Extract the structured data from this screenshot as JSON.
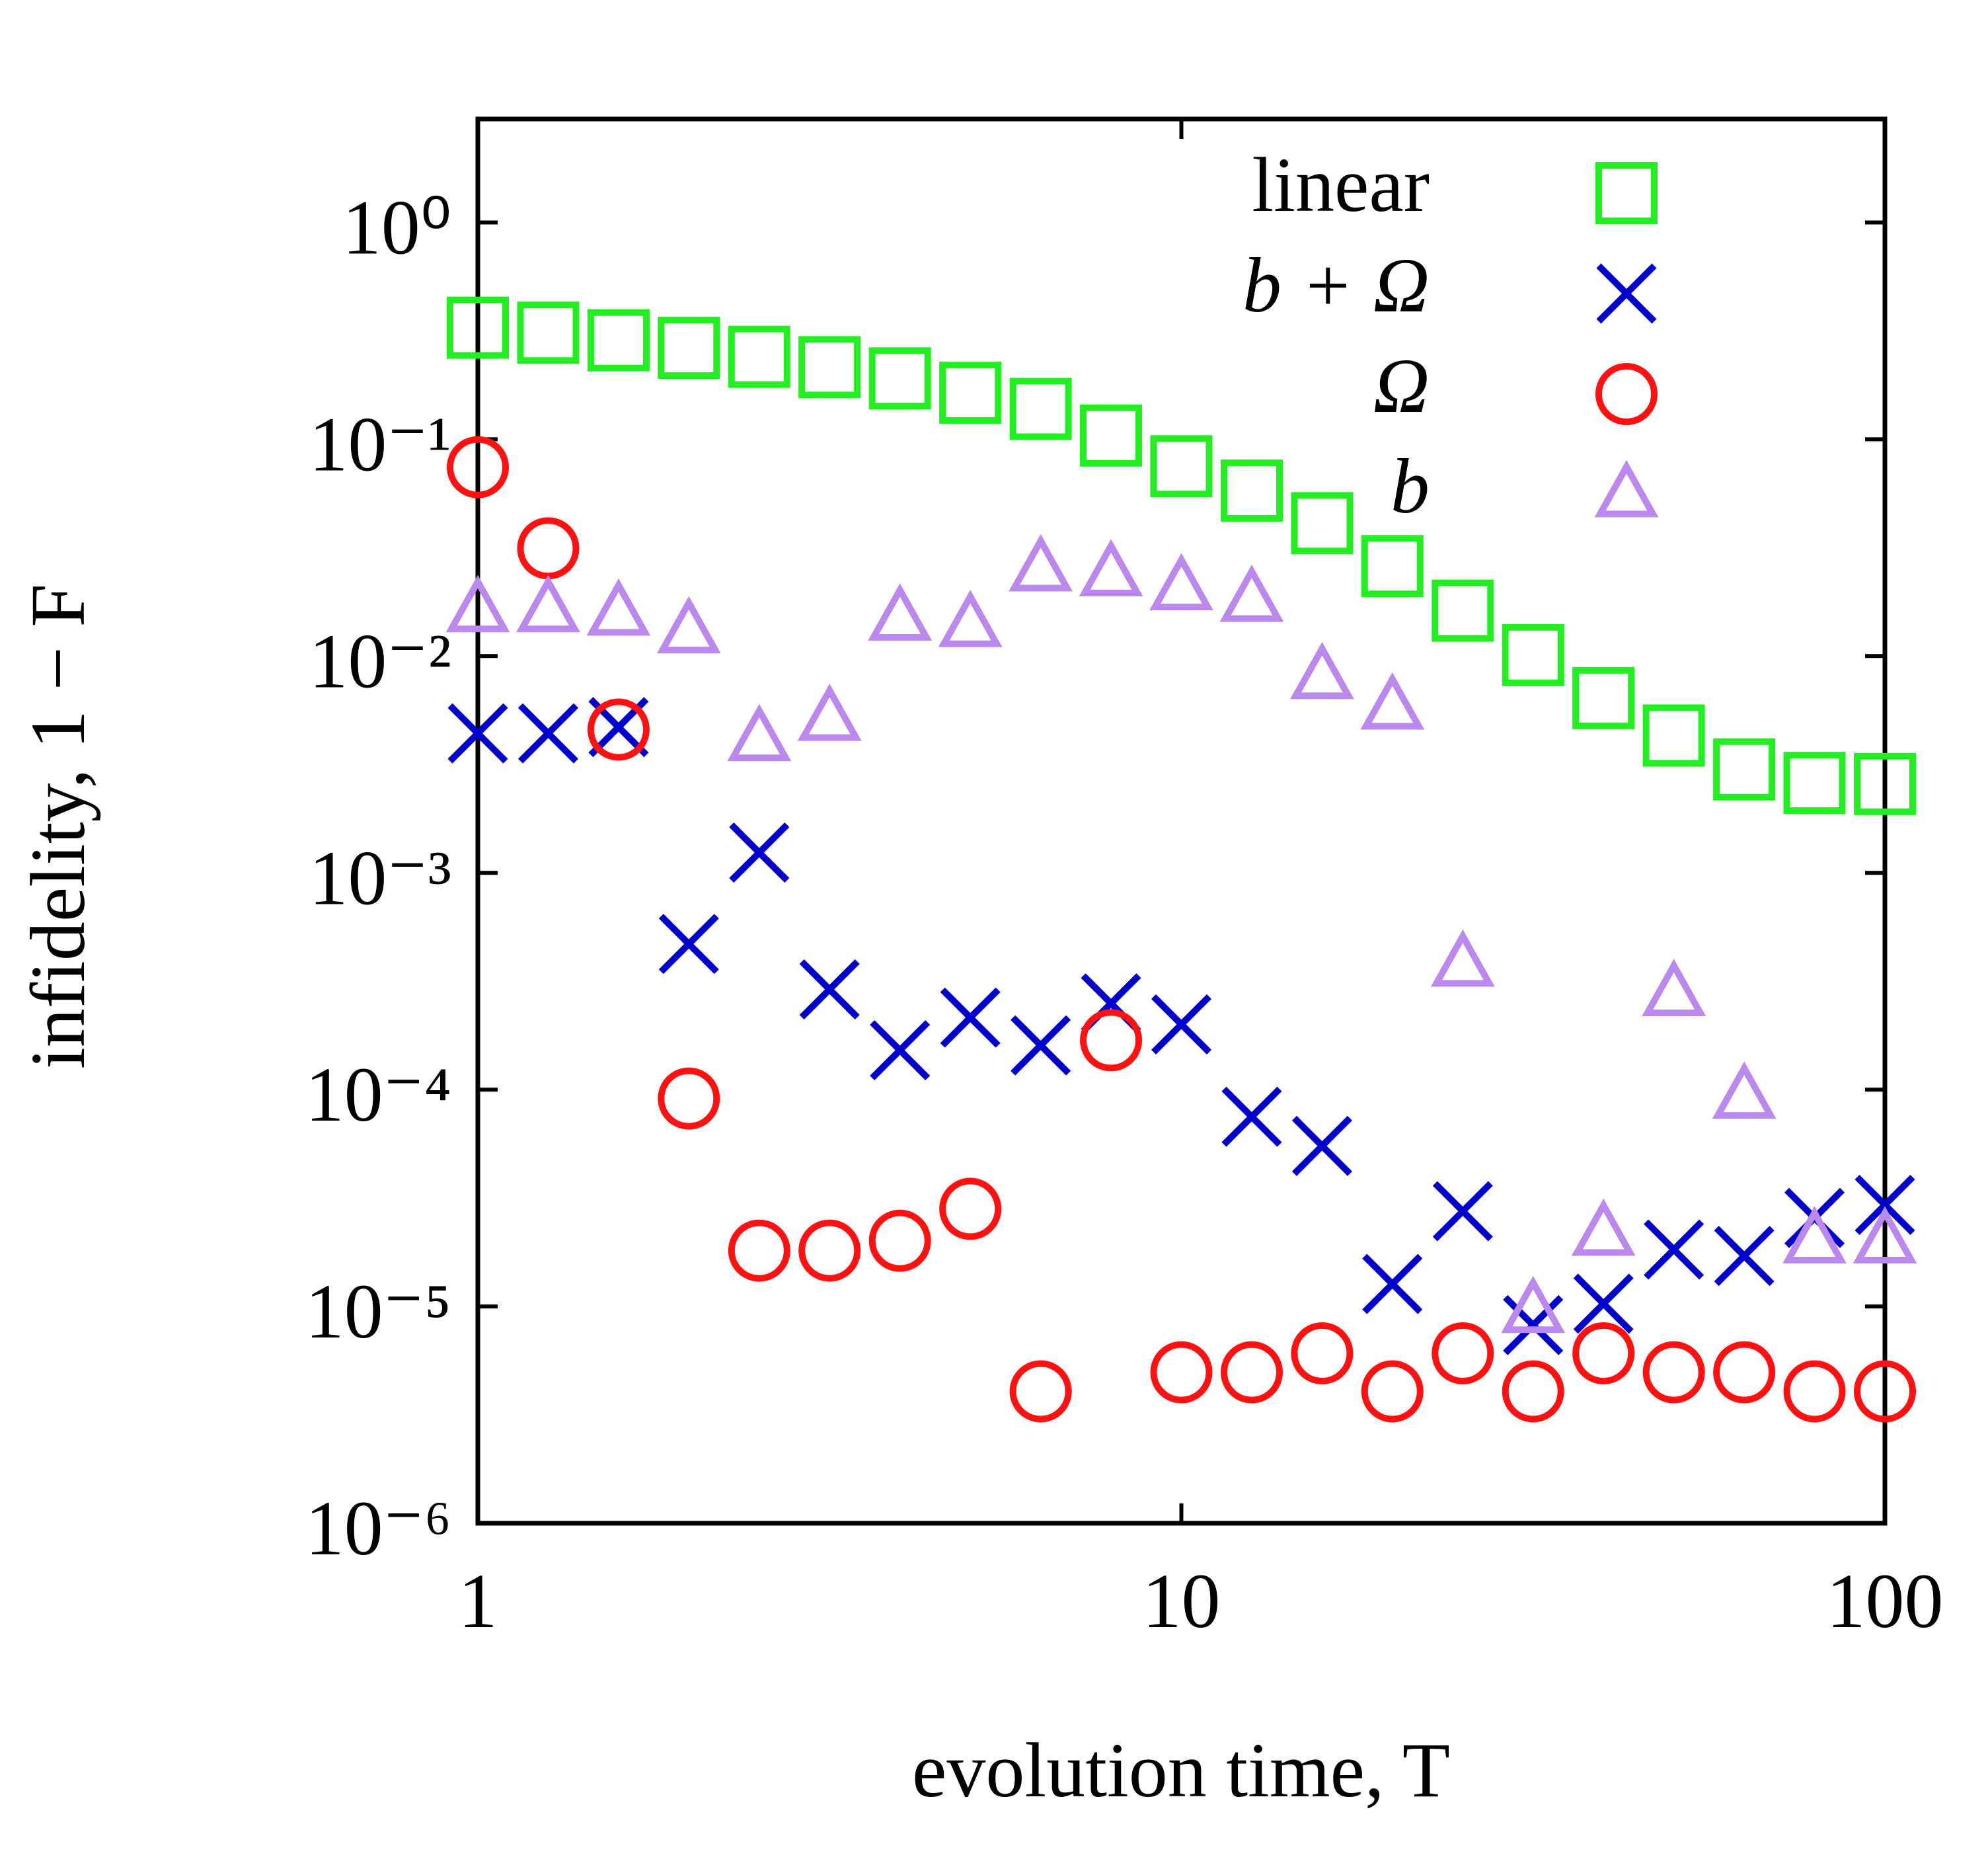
{
  "chart_data": {
    "type": "scatter",
    "xlabel": "evolution time, T",
    "ylabel": "infidelity, 1 − F",
    "xscale": "log",
    "yscale": "log",
    "xlim": [
      1,
      100
    ],
    "ylim": [
      1e-06,
      3
    ],
    "xticks": [
      1,
      10,
      100
    ],
    "yticks": [
      {
        "value": 1,
        "label": "10⁰"
      },
      {
        "value": 0.1,
        "label": "10⁻¹"
      },
      {
        "value": 0.01,
        "label": "10⁻²"
      },
      {
        "value": 0.001,
        "label": "10⁻³"
      },
      {
        "value": 0.0001,
        "label": "10⁻⁴"
      },
      {
        "value": 1e-05,
        "label": "10⁻⁵"
      },
      {
        "value": 1e-06,
        "label": "10⁻⁶"
      }
    ],
    "legend": "upper right",
    "x": [
      1,
      1.259,
      1.585,
      1.995,
      2.512,
      3.162,
      3.981,
      5.012,
      6.31,
      7.943,
      10,
      12.59,
      15.85,
      19.95,
      25.12,
      31.62,
      39.81,
      50.12,
      63.1,
      79.43,
      100
    ],
    "series": [
      {
        "name": "linear",
        "marker": "square",
        "color": "#22ee22",
        "values": [
          0.327,
          0.31,
          0.286,
          0.264,
          0.24,
          0.215,
          0.191,
          0.164,
          0.138,
          0.104,
          0.075,
          0.058,
          0.041,
          0.026,
          0.0162,
          0.0101,
          0.0064,
          0.0043,
          0.003,
          0.0026,
          0.00257
        ]
      },
      {
        "name": "b + Ω",
        "marker": "cross",
        "color": "#0000cc",
        "values": [
          0.0044,
          0.0044,
          0.0047,
          0.00047,
          0.00124,
          0.00029,
          0.000152,
          0.000215,
          0.00016,
          0.00025,
          0.0002,
          7.5e-05,
          5.5e-05,
          1.27e-05,
          2.75e-05,
          8.2e-06,
          1.03e-05,
          1.83e-05,
          1.71e-05,
          2.56e-05,
          2.94e-05
        ]
      },
      {
        "name": "Ω",
        "marker": "circle",
        "color": "#ff1111",
        "values": [
          0.0743,
          0.0314,
          0.00458,
          9.1e-05,
          1.81e-05,
          1.81e-05,
          2.01e-05,
          2.82e-05,
          4.06e-06,
          0.000169,
          4.97e-06,
          4.97e-06,
          6.08e-06,
          4.06e-06,
          6.08e-06,
          4.06e-06,
          6.08e-06,
          4.97e-06,
          4.97e-06,
          4.06e-06,
          4.06e-06
        ]
      },
      {
        "name": "b",
        "marker": "triangle",
        "color": "#bb88ee",
        "values": [
          0.0164,
          0.0164,
          0.0158,
          0.0131,
          0.00417,
          0.00517,
          0.015,
          0.014,
          0.0253,
          0.024,
          0.0207,
          0.0183,
          0.00806,
          0.00583,
          0.00038,
          9.6e-06,
          2.18e-05,
          0.000278,
          9.35e-05,
          2.01e-05,
          2.01e-05
        ]
      }
    ]
  }
}
